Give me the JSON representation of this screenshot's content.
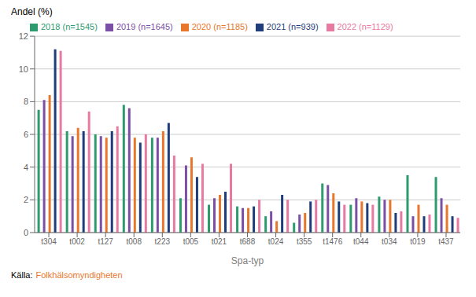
{
  "chart_data": {
    "type": "bar",
    "categories": [
      "t304",
      "t002",
      "t127",
      "t008",
      "t223",
      "t005",
      "t021",
      "t688",
      "t024",
      "t355",
      "t1476",
      "t044",
      "t034",
      "t019",
      "t437"
    ],
    "series": [
      {
        "name": "2018 (n=1545)",
        "color": "#2e9b6e",
        "values": [
          7.5,
          6.2,
          6.0,
          7.8,
          5.8,
          2.1,
          1.7,
          1.6,
          1.0,
          0.6,
          3.0,
          1.7,
          2.2,
          3.5,
          3.4
        ]
      },
      {
        "name": "2019 (n=1645)",
        "color": "#7b4fa6",
        "values": [
          8.1,
          5.9,
          5.9,
          7.6,
          5.8,
          4.1,
          2.1,
          1.5,
          1.3,
          1.1,
          2.9,
          2.1,
          2.0,
          1.0,
          2.1
        ]
      },
      {
        "name": "2020 (n=1185)",
        "color": "#e8762b",
        "values": [
          8.4,
          6.4,
          5.8,
          5.8,
          6.2,
          4.6,
          2.3,
          1.5,
          0.7,
          1.2,
          2.4,
          1.9,
          2.0,
          1.7,
          1.7
        ]
      },
      {
        "name": "2021 (n=939)",
        "color": "#1f3d7a",
        "values": [
          11.2,
          6.2,
          6.2,
          5.5,
          6.7,
          3.4,
          2.5,
          1.6,
          2.3,
          1.9,
          1.9,
          1.8,
          1.2,
          1.0,
          1.0
        ]
      },
      {
        "name": "2022 (n=1129)",
        "color": "#e879a0",
        "values": [
          11.1,
          7.4,
          6.5,
          6.0,
          4.7,
          4.2,
          4.2,
          2.0,
          2.0,
          2.0,
          1.7,
          1.7,
          1.3,
          1.1,
          0.9
        ]
      }
    ],
    "xlabel": "Spa-typ",
    "ylabel": "Andel (%)",
    "ylim": [
      0,
      12
    ],
    "yticks": [
      0,
      2,
      4,
      6,
      8,
      10,
      12
    ],
    "grid": true,
    "legend": "top",
    "annotations": [
      {
        "text": "Källa:",
        "color": "#000000"
      },
      {
        "text": "Folkhälsomyndigheten",
        "color": "#e8762b"
      }
    ]
  }
}
